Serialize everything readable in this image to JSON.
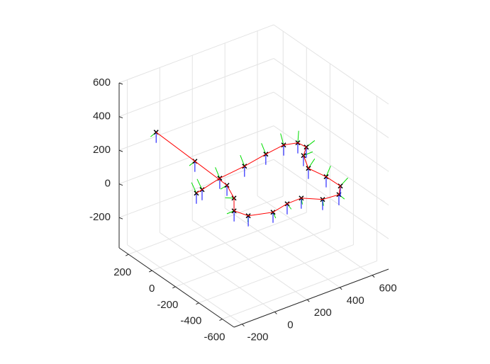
{
  "chart_data": {
    "type": "line3d",
    "color": "#ff0000",
    "grid": true,
    "x": [
      -96,
      -12,
      74,
      28,
      -45,
      -17,
      102,
      207,
      296,
      373,
      466,
      521,
      518,
      496,
      550,
      610,
      601,
      532,
      408,
      254,
      86,
      -50,
      -93
    ],
    "y": [
      178,
      -36,
      -190,
      -314,
      -416,
      -498,
      -544,
      -519,
      -516,
      -591,
      -601,
      -537,
      -420,
      -299,
      -182,
      -123,
      -63,
      -38,
      -58,
      -90,
      -112,
      -150,
      -161
    ],
    "z": [
      300,
      200,
      100,
      100,
      100,
      100,
      100,
      100,
      100,
      100,
      100,
      100,
      100,
      100,
      100,
      100,
      100,
      100,
      100,
      100,
      100,
      100,
      100
    ],
    "xlim": [
      -250,
      700
    ],
    "ylim": [
      -700,
      280
    ],
    "zlim": [
      -380,
      600
    ],
    "xticks": [
      -200,
      0,
      200,
      400,
      600
    ],
    "yticks": [
      -600,
      -400,
      -200,
      0,
      200
    ],
    "zticks": [
      -200,
      0,
      200,
      400,
      600
    ]
  }
}
